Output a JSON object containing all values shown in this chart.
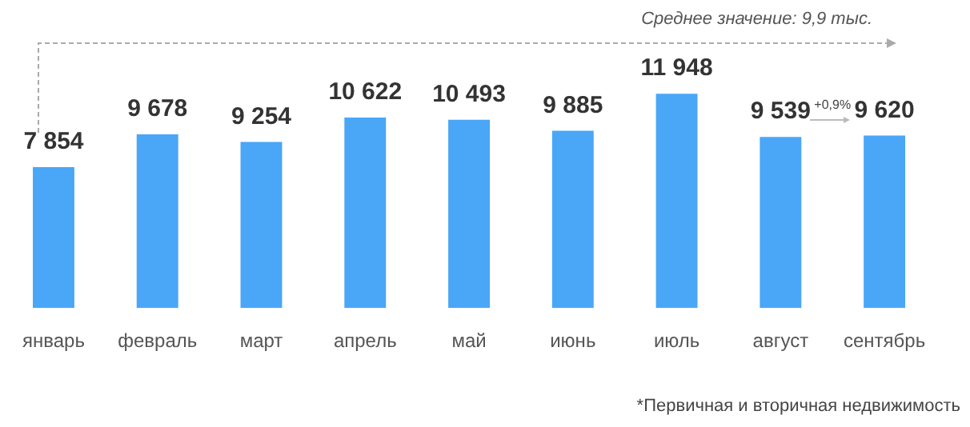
{
  "chart_data": {
    "type": "bar",
    "categories": [
      "январь",
      "февраль",
      "март",
      "апрель",
      "май",
      "июнь",
      "июль",
      "август",
      "сентябрь"
    ],
    "values": [
      7854,
      9678,
      9254,
      10622,
      10493,
      9885,
      11948,
      9539,
      9620
    ],
    "value_labels": [
      "7 854",
      "9 678",
      "9 254",
      "10 622",
      "10 493",
      "9 885",
      "11 948",
      "9 539",
      "9 620"
    ],
    "color": "#4aa6f7",
    "annotations": [
      "Среднее значение: 9,9 тыс.",
      "+0,9%",
      "*Первичная и вторичная недвижимость"
    ],
    "grid": false,
    "legend": false
  }
}
